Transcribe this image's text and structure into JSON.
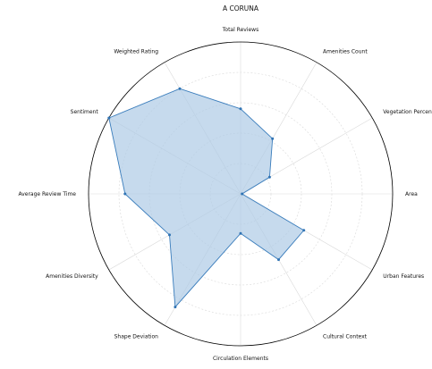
{
  "chart_data": {
    "type": "radar",
    "title": "A CORUNA",
    "axes": [
      "Total Reviews",
      "Amenities Count",
      "Vegetation Percentage",
      "Area",
      "Urban Features",
      "Cultural Context",
      "Circulation Elements",
      "Shape Deviation",
      "Amenities Diversity",
      "Average Review Time",
      "Sentiment",
      "Weighted Rating"
    ],
    "series": [
      {
        "values": [
          0.56,
          0.42,
          0.22,
          0.01,
          0.48,
          0.5,
          0.26,
          0.86,
          0.54,
          0.76,
          1.0,
          0.8
        ]
      }
    ],
    "rlim": [
      0,
      1
    ],
    "rings": [
      0.2,
      0.4,
      0.6,
      0.8,
      1.0
    ],
    "grid": true,
    "colors": {
      "fill": "#aecbe5",
      "line": "#3a7dbc",
      "marker": "#2f73b4"
    }
  }
}
